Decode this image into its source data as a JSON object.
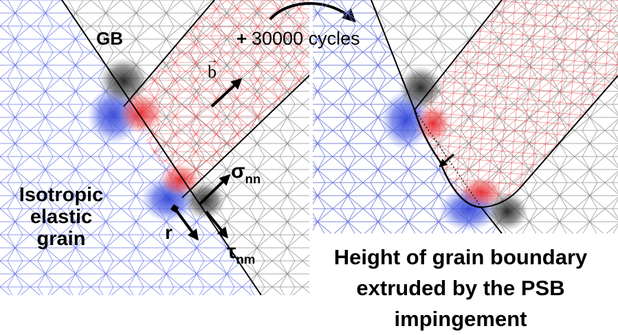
{
  "labels": {
    "gb": "GB",
    "plus": "+",
    "cycles": "30000 cycles",
    "b_vector": "b",
    "vector_arrow": "→",
    "sigma": "σ",
    "sigma_sub": "nn",
    "tau": "τ",
    "tau_sub": "nm",
    "r": "r",
    "grain_line1": "Isotropic",
    "grain_line2": "elastic",
    "grain_line3": "grain",
    "caption_line1": "Height of grain boundary",
    "caption_line2": "extruded by the PSB",
    "caption_line3": "impingement"
  },
  "colors": {
    "blue_mesh": "#4f5fe0",
    "blue_dense": "#3a4ad8",
    "red_mesh": "#e8363a",
    "black_mesh": "#2b2b2b",
    "gray_mesh": "#9a9a9a"
  }
}
